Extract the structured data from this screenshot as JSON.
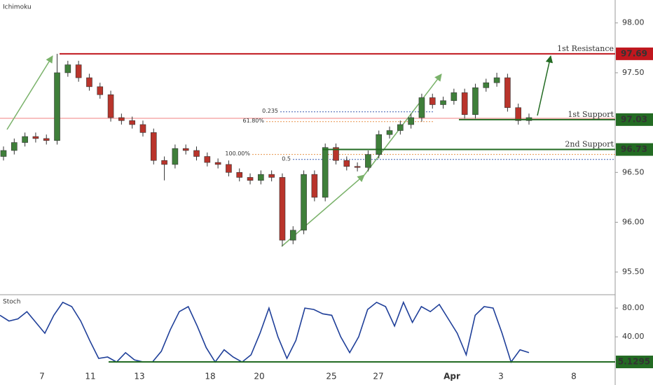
{
  "chart_data": {
    "type": "candlestick",
    "title": "Ichimoku",
    "up_color": "#3f7f3a",
    "down_color": "#b9342b",
    "candles": [
      [
        96.66,
        96.76,
        96.62,
        96.72
      ],
      [
        96.72,
        96.84,
        96.68,
        96.8
      ],
      [
        96.8,
        96.9,
        96.76,
        96.86
      ],
      [
        96.86,
        96.9,
        96.8,
        96.84
      ],
      [
        96.84,
        96.88,
        96.78,
        96.82
      ],
      [
        96.82,
        97.69,
        96.78,
        97.5
      ],
      [
        97.5,
        97.62,
        97.46,
        97.58
      ],
      [
        97.58,
        97.62,
        97.41,
        97.45
      ],
      [
        97.45,
        97.49,
        97.32,
        97.36
      ],
      [
        97.36,
        97.4,
        97.24,
        97.28
      ],
      [
        97.28,
        97.32,
        97.01,
        97.05
      ],
      [
        97.05,
        97.09,
        96.98,
        97.02
      ],
      [
        97.02,
        97.06,
        96.94,
        96.98
      ],
      [
        96.98,
        97.02,
        96.86,
        96.9
      ],
      [
        96.9,
        96.94,
        96.58,
        96.62
      ],
      [
        96.62,
        96.66,
        96.42,
        96.58
      ],
      [
        96.58,
        96.78,
        96.54,
        96.74
      ],
      [
        96.74,
        96.78,
        96.68,
        96.72
      ],
      [
        96.72,
        96.76,
        96.62,
        96.66
      ],
      [
        96.66,
        96.7,
        96.56,
        96.6
      ],
      [
        96.6,
        96.64,
        96.54,
        96.58
      ],
      [
        96.58,
        96.62,
        96.46,
        96.5
      ],
      [
        96.5,
        96.54,
        96.41,
        96.45
      ],
      [
        96.45,
        96.49,
        96.38,
        96.42
      ],
      [
        96.42,
        96.52,
        96.38,
        96.48
      ],
      [
        96.48,
        96.52,
        96.41,
        96.45
      ],
      [
        96.45,
        96.49,
        95.76,
        95.82
      ],
      [
        95.82,
        95.96,
        95.78,
        95.92
      ],
      [
        95.92,
        96.52,
        95.88,
        96.48
      ],
      [
        96.48,
        96.52,
        96.21,
        96.25
      ],
      [
        96.25,
        96.79,
        96.21,
        96.75
      ],
      [
        96.75,
        96.79,
        96.58,
        96.62
      ],
      [
        96.62,
        96.66,
        96.52,
        96.56
      ],
      [
        96.56,
        96.6,
        96.51,
        96.55
      ],
      [
        96.55,
        96.72,
        96.51,
        96.68
      ],
      [
        96.68,
        96.92,
        96.64,
        96.88
      ],
      [
        96.88,
        96.96,
        96.84,
        96.92
      ],
      [
        96.92,
        97.02,
        96.88,
        96.98
      ],
      [
        96.98,
        97.09,
        96.94,
        97.05
      ],
      [
        97.05,
        97.29,
        97.01,
        97.25
      ],
      [
        97.25,
        97.29,
        97.14,
        97.18
      ],
      [
        97.18,
        97.26,
        97.14,
        97.22
      ],
      [
        97.22,
        97.34,
        97.18,
        97.3
      ],
      [
        97.3,
        97.34,
        97.04,
        97.08
      ],
      [
        97.08,
        97.39,
        97.04,
        97.35
      ],
      [
        97.35,
        97.44,
        97.31,
        97.4
      ],
      [
        97.4,
        97.5,
        97.36,
        97.45
      ],
      [
        97.45,
        97.49,
        97.11,
        97.15
      ],
      [
        97.15,
        97.19,
        96.98,
        97.02
      ],
      [
        97.02,
        97.09,
        96.98,
        97.05
      ]
    ],
    "ylim": [
      95.28,
      98.23
    ],
    "yticks": [
      {
        "value": 98,
        "label": "98.00"
      },
      {
        "value": 97.5,
        "label": "97.50"
      },
      {
        "value": 96.5,
        "label": "96.50"
      },
      {
        "value": 96,
        "label": "96.00"
      },
      {
        "value": 95.5,
        "label": "95.50"
      }
    ],
    "categories": [
      "7",
      "11",
      "13",
      "18",
      "20",
      "25",
      "27",
      "Apr",
      "3",
      "8"
    ],
    "levels": [
      {
        "name": "1st Resistance",
        "value": 97.69,
        "color": "#c0171e"
      },
      {
        "name": "1st Support",
        "value": 97.03,
        "color": "#236b23"
      },
      {
        "name": "2nd Support",
        "value": 96.73,
        "color": "#236b23"
      }
    ],
    "fib": [
      {
        "label": "0.235",
        "value": 97.108,
        "color": "#3b5fb0"
      },
      {
        "label": "61.80%",
        "value": 97.01,
        "color": "#e8944a"
      },
      {
        "label": "100.00%",
        "value": 96.68,
        "color": "#e8944a"
      },
      {
        "label": "0.5",
        "value": 96.63,
        "color": "#3b5fb0"
      }
    ],
    "indicator": {
      "title": "Stoch",
      "color": "#1f3f99",
      "values": [
        70,
        62,
        65,
        75,
        60,
        45,
        70,
        88,
        82,
        62,
        35,
        10,
        12,
        5,
        18,
        8,
        5,
        5,
        20,
        50,
        75,
        82,
        55,
        25,
        5,
        22,
        12,
        5,
        15,
        45,
        80,
        40,
        10,
        35,
        80,
        78,
        72,
        70,
        40,
        18,
        40,
        78,
        88,
        82,
        55,
        88,
        60,
        82,
        75,
        85,
        65,
        45,
        15,
        70,
        82,
        80,
        45,
        5,
        22,
        18
      ],
      "ylim": [
        -25,
        97.6
      ],
      "yticks": [
        {
          "value": 80,
          "label": "80.00"
        },
        {
          "value": 40,
          "label": "40.00"
        }
      ],
      "level": 5.1295,
      "level_color": "#236b23"
    }
  }
}
